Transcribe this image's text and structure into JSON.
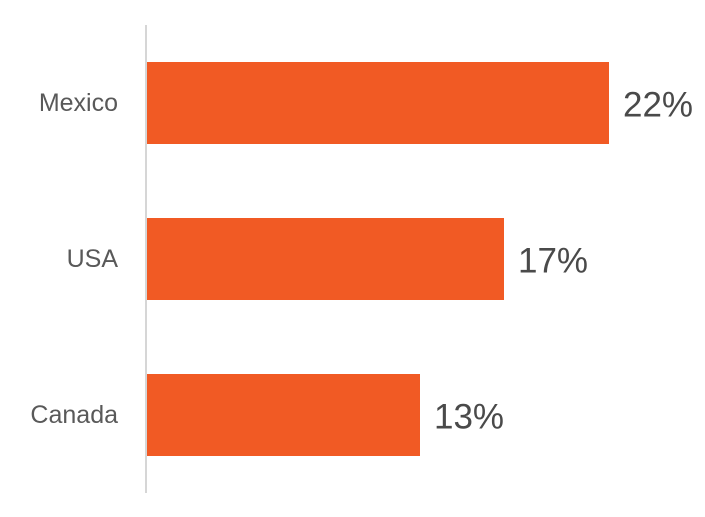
{
  "chart_data": {
    "type": "bar",
    "orientation": "horizontal",
    "categories": [
      "Mexico",
      "USA",
      "Canada"
    ],
    "values": [
      22,
      17,
      13
    ],
    "value_labels": [
      "22%",
      "17%",
      "13%"
    ],
    "unit": "%",
    "title": "",
    "xlabel": "",
    "ylabel": "",
    "xlim": [
      0,
      22
    ],
    "grid": false,
    "legend": "none",
    "colors": {
      "bar": "#F15A24",
      "axis": "#c8c8c8",
      "category_text": "#595959",
      "value_text": "#4a4a4a"
    }
  }
}
